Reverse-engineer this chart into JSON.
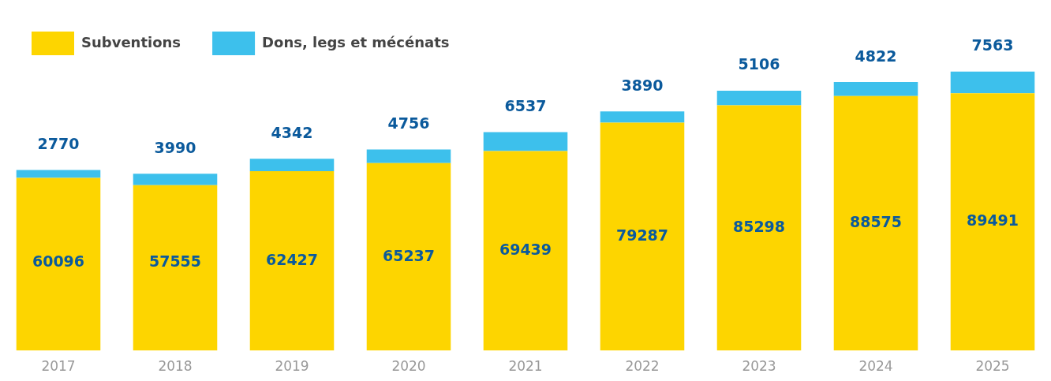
{
  "chart_data": {
    "type": "bar",
    "stacked": true,
    "data_labels": true,
    "legend": "top left",
    "grid": false,
    "tick_labels": "x",
    "categories": [
      "2017",
      "2018",
      "2019",
      "2020",
      "2021",
      "2022",
      "2023",
      "2024",
      "2025"
    ],
    "series": [
      {
        "name": "Subventions",
        "color": "#fdd500",
        "values": [
          60096,
          57555,
          62427,
          65237,
          69439,
          79287,
          85298,
          88575,
          89491
        ]
      },
      {
        "name": "Dons, legs et mécénats",
        "color": "#3dc0ec",
        "values": [
          2770,
          3990,
          4342,
          4756,
          6537,
          3890,
          5106,
          4822,
          7563
        ]
      }
    ]
  }
}
